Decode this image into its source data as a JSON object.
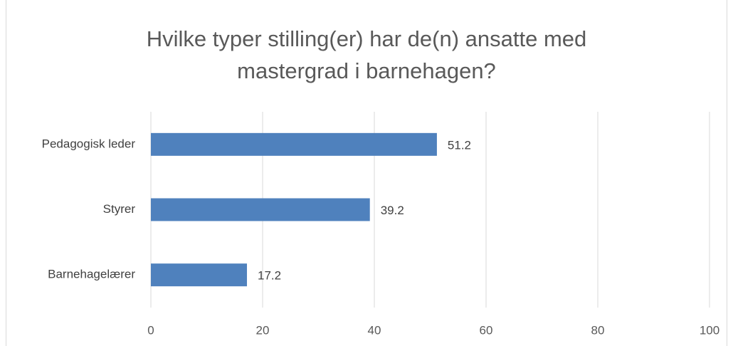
{
  "chart_data": {
    "type": "bar",
    "orientation": "horizontal",
    "title": [
      "Hvilke typer stilling(er) har de(n) ansatte med",
      "mastergrad i barnehagen?"
    ],
    "categories": [
      "Pedagogisk leder",
      "Styrer",
      "Barnehagelærer"
    ],
    "values": [
      51.2,
      39.2,
      17.2
    ],
    "color": "#4f81bd",
    "xlim": [
      0,
      100
    ],
    "xticks": [
      0,
      20,
      40,
      60,
      80,
      100
    ],
    "grid": true
  }
}
